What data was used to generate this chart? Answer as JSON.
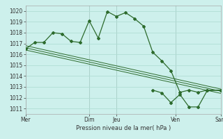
{
  "background_color": "#cdf0ec",
  "grid_color": "#b0ddd5",
  "line_color": "#2d6b2d",
  "xlabel": "Pression niveau de la mer( hPa )",
  "ylim": [
    1010.5,
    1020.5
  ],
  "yticks": [
    1011,
    1012,
    1013,
    1014,
    1015,
    1016,
    1017,
    1018,
    1019,
    1020
  ],
  "xtick_labels": [
    "Mer",
    "Dim",
    "Jeu",
    "Ven",
    "Sam"
  ],
  "xtick_positions": [
    0,
    14,
    20,
    33,
    43
  ],
  "vline_positions": [
    0,
    14,
    20,
    33,
    43
  ],
  "series1_x": [
    0,
    1,
    2,
    3,
    4,
    5,
    6,
    7,
    8,
    9,
    10,
    11,
    12,
    13,
    14,
    15,
    16,
    17,
    18,
    19,
    20,
    21,
    22,
    23,
    24,
    25,
    26,
    27,
    28,
    29,
    30,
    31,
    32,
    33,
    34,
    35,
    36,
    37,
    38,
    39,
    40,
    41,
    42,
    43
  ],
  "series1_y": [
    1016.5,
    1016.8,
    1017.1,
    1017.1,
    1017.8,
    1018.0,
    1017.9,
    1017.5,
    1017.2,
    1017.1,
    1017.2,
    1017.4,
    1019.1,
    1017.3,
    1017.5,
    1019.95,
    1019.5,
    1019.9,
    1019.3,
    1018.7,
    1016.2,
    1015.5,
    1015.4,
    1014.5,
    1014.3,
    1013.0,
    1012.5,
    1012.6,
    1012.7,
    1012.55,
    1011.6,
    1012.3,
    1011.2,
    1011.2,
    1012.6,
    1012.5,
    1012.65,
    1012.7,
    1012.7,
    1012.6,
    1012.65,
    1012.7,
    1012.65,
    1012.7
  ],
  "series2_x": [
    0,
    43
  ],
  "series2_y": [
    1016.8,
    1012.8
  ],
  "series3_x": [
    0,
    43
  ],
  "series3_y": [
    1016.6,
    1012.6
  ],
  "series4_x": [
    0,
    43
  ],
  "series4_y": [
    1016.4,
    1012.4
  ],
  "main_x": [
    0,
    2,
    4,
    6,
    8,
    10,
    12,
    14,
    16,
    18,
    20,
    22,
    24,
    26,
    28,
    30,
    32,
    34,
    36,
    38,
    40,
    43
  ],
  "main_y": [
    1016.5,
    1017.1,
    1017.1,
    1018.0,
    1017.9,
    1017.2,
    1017.1,
    1019.1,
    1017.5,
    1019.95,
    1019.5,
    1019.85,
    1019.3,
    1018.6,
    1016.2,
    1015.4,
    1014.5,
    1012.5,
    1012.7,
    1012.5,
    1012.7,
    1012.7
  ],
  "right_x": [
    28,
    30,
    32,
    34,
    36,
    38,
    40,
    43
  ],
  "right_y": [
    1012.7,
    1012.45,
    1011.55,
    1012.3,
    1011.15,
    1011.15,
    1012.65,
    1012.7
  ]
}
